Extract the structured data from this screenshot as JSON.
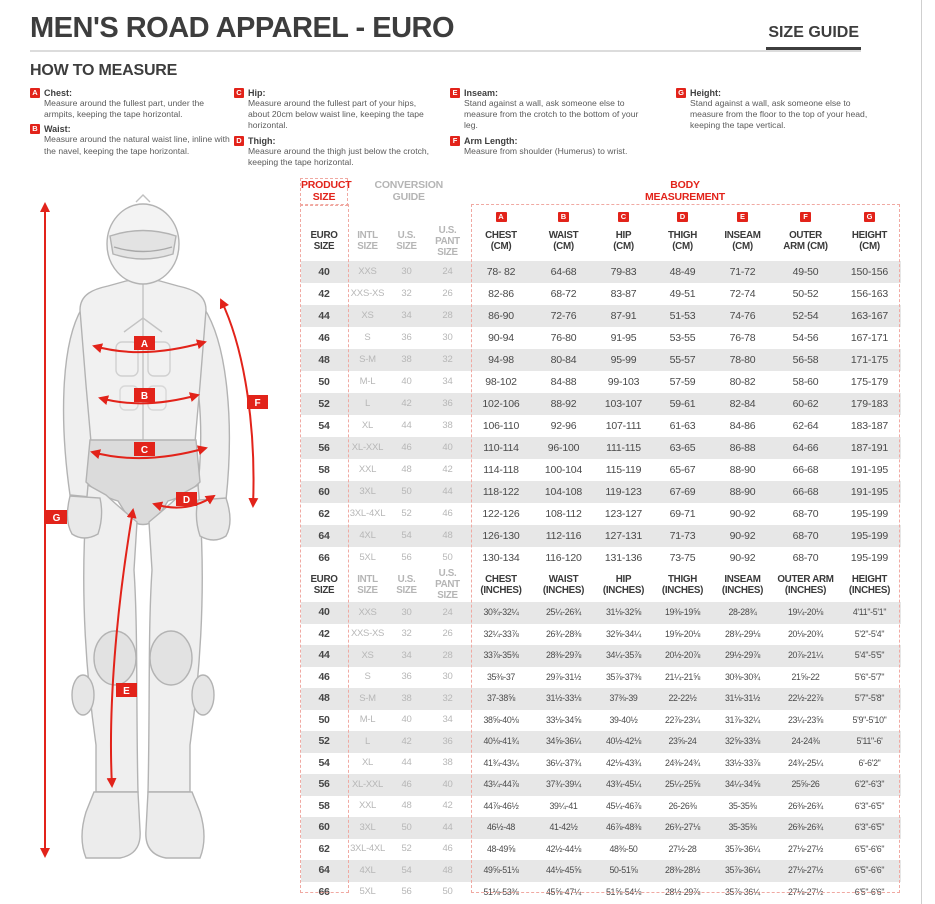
{
  "colors": {
    "accent_red": "#e2231a",
    "row_stripe": "#e7e7e7",
    "muted_text": "#b5b5b5",
    "dark_text": "#3d3d3d",
    "dashed_border": "#f0a9a2"
  },
  "page": {
    "title": "MEN'S ROAD APPAREL - EURO",
    "size_guide_label": "SIZE GUIDE"
  },
  "how_to_measure": {
    "title": "HOW TO MEASURE",
    "items": [
      {
        "letter": "A",
        "name": "Chest:",
        "text": "Measure around the fullest part, under the armpits, keeping the tape horizontal."
      },
      {
        "letter": "B",
        "name": "Waist:",
        "text": "Measure around the natural waist line, inline with the navel, keeping the tape horizontal."
      },
      {
        "letter": "C",
        "name": "Hip:",
        "text": "Measure around the fullest part of your hips, about 20cm below waist line, keeping the tape horizontal."
      },
      {
        "letter": "D",
        "name": "Thigh:",
        "text": "Measure around the thigh just below the crotch, keeping the tape horizontal."
      },
      {
        "letter": "E",
        "name": "Inseam:",
        "text": "Stand against a wall, ask someone else to measure from the crotch to the bottom of your leg."
      },
      {
        "letter": "F",
        "name": "Arm Length:",
        "text": "Measure from shoulder (Humerus) to wrist."
      },
      {
        "letter": "G",
        "name": "Height:",
        "text": "Stand against a wall, ask someone else to measure from the floor to the top of your head, keeping the tape vertical."
      }
    ]
  },
  "figure": {
    "badges": [
      "A",
      "B",
      "C",
      "D",
      "E",
      "F",
      "G"
    ]
  },
  "table": {
    "group_product": "PRODUCT\nSIZE",
    "group_conversion": "CONVERSION\nGUIDE",
    "group_body": "BODY\nMEASUREMENT",
    "letters": [
      "A",
      "B",
      "C",
      "D",
      "E",
      "F",
      "G"
    ],
    "cm_headers": [
      "EURO\nSIZE",
      "INTL\nSIZE",
      "U.S.\nSIZE",
      "U.S.\nPANT SIZE",
      "CHEST\n(CM)",
      "WAIST\n(CM)",
      "HIP\n(CM)",
      "THIGH\n(CM)",
      "INSEAM\n(CM)",
      "OUTER\nARM (CM)",
      "HEIGHT\n(CM)"
    ],
    "cm_rows": [
      [
        "40",
        "XXS",
        "30",
        "24",
        "78- 82",
        "64-68",
        "79-83",
        "48-49",
        "71-72",
        "49-50",
        "150-156"
      ],
      [
        "42",
        "XXS-XS",
        "32",
        "26",
        "82-86",
        "68-72",
        "83-87",
        "49-51",
        "72-74",
        "50-52",
        "156-163"
      ],
      [
        "44",
        "XS",
        "34",
        "28",
        "86-90",
        "72-76",
        "87-91",
        "51-53",
        "74-76",
        "52-54",
        "163-167"
      ],
      [
        "46",
        "S",
        "36",
        "30",
        "90-94",
        "76-80",
        "91-95",
        "53-55",
        "76-78",
        "54-56",
        "167-171"
      ],
      [
        "48",
        "S-M",
        "38",
        "32",
        "94-98",
        "80-84",
        "95-99",
        "55-57",
        "78-80",
        "56-58",
        "171-175"
      ],
      [
        "50",
        "M-L",
        "40",
        "34",
        "98-102",
        "84-88",
        "99-103",
        "57-59",
        "80-82",
        "58-60",
        "175-179"
      ],
      [
        "52",
        "L",
        "42",
        "36",
        "102-106",
        "88-92",
        "103-107",
        "59-61",
        "82-84",
        "60-62",
        "179-183"
      ],
      [
        "54",
        "XL",
        "44",
        "38",
        "106-110",
        "92-96",
        "107-111",
        "61-63",
        "84-86",
        "62-64",
        "183-187"
      ],
      [
        "56",
        "XL-XXL",
        "46",
        "40",
        "110-114",
        "96-100",
        "111-115",
        "63-65",
        "86-88",
        "64-66",
        "187-191"
      ],
      [
        "58",
        "XXL",
        "48",
        "42",
        "114-118",
        "100-104",
        "115-119",
        "65-67",
        "88-90",
        "66-68",
        "191-195"
      ],
      [
        "60",
        "3XL",
        "50",
        "44",
        "118-122",
        "104-108",
        "119-123",
        "67-69",
        "88-90",
        "66-68",
        "191-195"
      ],
      [
        "62",
        "3XL-4XL",
        "52",
        "46",
        "122-126",
        "108-112",
        "123-127",
        "69-71",
        "90-92",
        "68-70",
        "195-199"
      ],
      [
        "64",
        "4XL",
        "54",
        "48",
        "126-130",
        "112-116",
        "127-131",
        "71-73",
        "90-92",
        "68-70",
        "195-199"
      ],
      [
        "66",
        "5XL",
        "56",
        "50",
        "130-134",
        "116-120",
        "131-136",
        "73-75",
        "90-92",
        "68-70",
        "195-199"
      ]
    ],
    "inch_headers": [
      "EURO\nSIZE",
      "INTL\nSIZE",
      "U.S.\nSIZE",
      "U.S.\nPANT SIZE",
      "CHEST\n(INCHES)",
      "WAIST\n(INCHES)",
      "HIP\n(INCHES)",
      "THIGH\n(INCHES)",
      "INSEAM\n(INCHES)",
      "OUTER ARM\n(INCHES)",
      "HEIGHT\n(INCHES)"
    ],
    "inch_rows": [
      [
        "40",
        "XXS",
        "30",
        "24",
        "30¾-32¼",
        "25¼-26¾",
        "31⅛-32⅝",
        "19⅜-19⅝",
        "28-28¾",
        "19¼-20⅛",
        "4'11\"-5'1\""
      ],
      [
        "42",
        "XXS-XS",
        "32",
        "26",
        "32¼-33⅞",
        "26¾-28⅜",
        "32⅝-34¼",
        "19⅝-20⅛",
        "28¾-29⅛",
        "20⅛-20¾",
        "5'2\"-5'4\""
      ],
      [
        "44",
        "XS",
        "34",
        "28",
        "33⅞-35⅜",
        "28⅜-29⅞",
        "34¼-35⅞",
        "20½-20⅞",
        "29½-29⅞",
        "20⅞-21¼",
        "5'4\"-5'5\""
      ],
      [
        "46",
        "S",
        "36",
        "30",
        "35⅜-37",
        "29⅞-31½",
        "35⅞-37⅜",
        "21¼-21⅝",
        "30⅜-30¾",
        "21⅝-22",
        "5'6\"-5'7\""
      ],
      [
        "48",
        "S-M",
        "38",
        "32",
        "37-38⅝",
        "31½-33⅛",
        "37⅜-39",
        "22-22½",
        "31⅛-31½",
        "22½-22⅞",
        "5'7\"-5'8\""
      ],
      [
        "50",
        "M-L",
        "40",
        "34",
        "38⅝-40⅛",
        "33⅛-34⅝",
        "39-40½",
        "22⅞-23¼",
        "31⅞-32¼",
        "23¼-23⅝",
        "5'9\"-5'10\""
      ],
      [
        "52",
        "L",
        "42",
        "36",
        "40⅛-41¾",
        "34⅝-36¼",
        "40½-42⅛",
        "23⅝-24",
        "32⅝-33⅛",
        "24-24⅜",
        "5'11\"-6'"
      ],
      [
        "54",
        "XL",
        "44",
        "38",
        "41¾-43¼",
        "36¼-37¾",
        "42⅛-43¾",
        "24⅜-24¾",
        "33½-33⅞",
        "24¾-25¼",
        "6'-6'2\""
      ],
      [
        "56",
        "XL-XXL",
        "46",
        "40",
        "43¼-44⅞",
        "37¾-39¼",
        "43¾-45¼",
        "25¼-25⅝",
        "34¼-34⅝",
        "25⅝-26",
        "6'2\"-6'3\""
      ],
      [
        "58",
        "XXL",
        "48",
        "42",
        "44⅞-46½",
        "39¼-41",
        "45¼-46⅞",
        "26-26⅜",
        "35-35⅜",
        "26⅜-26¾",
        "6'3\"-6'5\""
      ],
      [
        "60",
        "3XL",
        "50",
        "44",
        "46½-48",
        "41-42½",
        "46⅞-48⅜",
        "26¾-27⅛",
        "35-35⅜",
        "26⅜-26¾",
        "6'3\"-6'5\""
      ],
      [
        "62",
        "3XL-4XL",
        "52",
        "46",
        "48-49⅝",
        "42½-44⅛",
        "48⅜-50",
        "27½-28",
        "35⅞-36¼",
        "27⅛-27½",
        "6'5\"-6'6\""
      ],
      [
        "64",
        "4XL",
        "54",
        "48",
        "49⅝-51⅛",
        "44⅛-45⅝",
        "50-51⅝",
        "28⅜-28½",
        "35⅞-36¼",
        "27⅛-27½",
        "6'5\"-6'6\""
      ],
      [
        "66",
        "5XL",
        "56",
        "50",
        "51⅛-53⅜",
        "45⅝-47¼",
        "51⅝-54⅛",
        "28½-29⅞",
        "35⅞-36¼",
        "27⅛-27½",
        "6'5\"-6'6\""
      ]
    ]
  }
}
